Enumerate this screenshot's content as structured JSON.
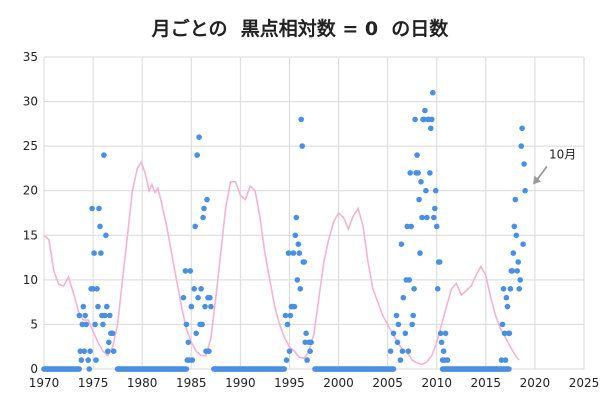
{
  "chart_data": {
    "type": "scatter",
    "title": "月ごとの  黒点相対数 = 0  の日数",
    "xlabel": "",
    "ylabel": "",
    "xlim": [
      1970,
      2025
    ],
    "ylim": [
      0,
      35
    ],
    "x_ticks": [
      1970,
      1975,
      1980,
      1985,
      1990,
      1995,
      2000,
      2005,
      2010,
      2015,
      2020,
      2025
    ],
    "y_ticks": [
      0,
      5,
      10,
      15,
      20,
      25,
      30,
      35
    ],
    "grid": true,
    "legend": "none",
    "annotation": {
      "text": "10月",
      "points_to": {
        "x": 2019.8,
        "y": 20.7
      }
    },
    "series": [
      {
        "kind": "points",
        "color": "#4a90e2",
        "zero_day_segments": [
          [
            1970.0,
            1973.6
          ],
          [
            1977.5,
            1984.5
          ],
          [
            1987.3,
            1994.5
          ],
          [
            1997.6,
            2005.6
          ],
          [
            2010.6,
            2017.4
          ]
        ],
        "points": [
          [
            1973.6,
            6
          ],
          [
            1973.7,
            2
          ],
          [
            1973.8,
            1
          ],
          [
            1973.9,
            5
          ],
          [
            1974.0,
            7
          ],
          [
            1974.1,
            2
          ],
          [
            1974.2,
            6
          ],
          [
            1974.3,
            5
          ],
          [
            1974.5,
            1
          ],
          [
            1974.6,
            0
          ],
          [
            1974.7,
            2
          ],
          [
            1974.8,
            9
          ],
          [
            1974.9,
            18
          ],
          [
            1975.0,
            9
          ],
          [
            1975.1,
            13
          ],
          [
            1975.2,
            5
          ],
          [
            1975.3,
            1
          ],
          [
            1975.4,
            9
          ],
          [
            1975.5,
            7
          ],
          [
            1975.6,
            18
          ],
          [
            1975.7,
            16
          ],
          [
            1975.8,
            13
          ],
          [
            1975.9,
            6
          ],
          [
            1976.0,
            5
          ],
          [
            1976.1,
            24
          ],
          [
            1976.2,
            6
          ],
          [
            1976.3,
            15
          ],
          [
            1976.4,
            7
          ],
          [
            1976.5,
            2
          ],
          [
            1976.6,
            3
          ],
          [
            1976.7,
            6
          ],
          [
            1976.8,
            4
          ],
          [
            1976.9,
            4
          ],
          [
            1977.0,
            4
          ],
          [
            1977.1,
            2
          ],
          [
            1984.2,
            8
          ],
          [
            1984.4,
            11
          ],
          [
            1984.5,
            5
          ],
          [
            1984.6,
            1
          ],
          [
            1984.7,
            3
          ],
          [
            1984.8,
            1
          ],
          [
            1984.9,
            11
          ],
          [
            1985.0,
            7
          ],
          [
            1985.1,
            1
          ],
          [
            1985.3,
            9
          ],
          [
            1985.4,
            16
          ],
          [
            1985.5,
            4
          ],
          [
            1985.6,
            24
          ],
          [
            1985.7,
            8
          ],
          [
            1985.8,
            26
          ],
          [
            1985.9,
            5
          ],
          [
            1986.0,
            9
          ],
          [
            1986.1,
            5
          ],
          [
            1986.2,
            17
          ],
          [
            1986.3,
            18
          ],
          [
            1986.4,
            7
          ],
          [
            1986.5,
            2
          ],
          [
            1986.6,
            19
          ],
          [
            1986.7,
            8
          ],
          [
            1986.8,
            2
          ],
          [
            1986.9,
            8
          ],
          [
            1987.0,
            7
          ],
          [
            1994.6,
            6
          ],
          [
            1994.7,
            1
          ],
          [
            1994.8,
            5
          ],
          [
            1994.9,
            13
          ],
          [
            1995.0,
            2
          ],
          [
            1995.1,
            6
          ],
          [
            1995.2,
            7
          ],
          [
            1995.3,
            7
          ],
          [
            1995.4,
            13
          ],
          [
            1995.5,
            7
          ],
          [
            1995.6,
            15
          ],
          [
            1995.7,
            17
          ],
          [
            1995.8,
            10
          ],
          [
            1995.9,
            14
          ],
          [
            1996.0,
            13
          ],
          [
            1996.1,
            9
          ],
          [
            1996.2,
            28
          ],
          [
            1996.3,
            25
          ],
          [
            1996.4,
            12
          ],
          [
            1996.5,
            12
          ],
          [
            1996.6,
            3
          ],
          [
            1996.7,
            4
          ],
          [
            1996.8,
            1
          ],
          [
            1997.0,
            3
          ],
          [
            1997.1,
            2
          ],
          [
            1997.2,
            3
          ],
          [
            2005.3,
            2
          ],
          [
            2005.6,
            4
          ],
          [
            2005.9,
            6
          ],
          [
            2006.0,
            3
          ],
          [
            2006.1,
            5
          ],
          [
            2006.3,
            1
          ],
          [
            2006.4,
            14
          ],
          [
            2006.5,
            2
          ],
          [
            2006.6,
            8
          ],
          [
            2006.8,
            4
          ],
          [
            2006.9,
            10
          ],
          [
            2007.0,
            16
          ],
          [
            2007.1,
            2
          ],
          [
            2007.2,
            10
          ],
          [
            2007.3,
            22
          ],
          [
            2007.4,
            16
          ],
          [
            2007.5,
            5
          ],
          [
            2007.6,
            6
          ],
          [
            2007.7,
            9
          ],
          [
            2007.8,
            28
          ],
          [
            2007.9,
            22
          ],
          [
            2008.0,
            24
          ],
          [
            2008.1,
            22
          ],
          [
            2008.2,
            19
          ],
          [
            2008.3,
            13
          ],
          [
            2008.4,
            21
          ],
          [
            2008.5,
            17
          ],
          [
            2008.6,
            28
          ],
          [
            2008.7,
            28
          ],
          [
            2008.8,
            29
          ],
          [
            2008.9,
            20
          ],
          [
            2009.0,
            17
          ],
          [
            2009.1,
            28
          ],
          [
            2009.2,
            28
          ],
          [
            2009.3,
            22
          ],
          [
            2009.4,
            27
          ],
          [
            2009.5,
            28
          ],
          [
            2009.6,
            31
          ],
          [
            2009.7,
            17
          ],
          [
            2009.8,
            18
          ],
          [
            2009.9,
            20
          ],
          [
            2010.0,
            16
          ],
          [
            2010.1,
            9
          ],
          [
            2010.2,
            12
          ],
          [
            2010.3,
            12
          ],
          [
            2010.4,
            4
          ],
          [
            2010.5,
            3
          ],
          [
            2010.6,
            1
          ],
          [
            2010.7,
            2
          ],
          [
            2010.8,
            1
          ],
          [
            2010.9,
            4
          ],
          [
            2011.1,
            1
          ],
          [
            2016.6,
            1
          ],
          [
            2016.7,
            5
          ],
          [
            2016.8,
            9
          ],
          [
            2016.9,
            4
          ],
          [
            2017.0,
            1
          ],
          [
            2017.1,
            8
          ],
          [
            2017.2,
            7
          ],
          [
            2017.3,
            4
          ],
          [
            2017.4,
            4
          ],
          [
            2017.5,
            9
          ],
          [
            2017.6,
            11
          ],
          [
            2017.7,
            11
          ],
          [
            2017.8,
            13
          ],
          [
            2017.9,
            16
          ],
          [
            2018.0,
            19
          ],
          [
            2018.1,
            15
          ],
          [
            2018.2,
            11
          ],
          [
            2018.3,
            12
          ],
          [
            2018.4,
            9
          ],
          [
            2018.5,
            10
          ],
          [
            2018.6,
            25
          ],
          [
            2018.7,
            27
          ],
          [
            2018.8,
            14
          ],
          [
            2018.9,
            23
          ],
          [
            2019.0,
            20
          ]
        ]
      },
      {
        "kind": "line",
        "color": "#f4b3d4",
        "points": [
          [
            1970.0,
            15
          ],
          [
            1970.5,
            14.5
          ],
          [
            1971.0,
            11
          ],
          [
            1971.5,
            9.5
          ],
          [
            1972.0,
            9.3
          ],
          [
            1972.5,
            10.3
          ],
          [
            1973.0,
            8.5
          ],
          [
            1973.5,
            6.5
          ],
          [
            1974.0,
            5.5
          ],
          [
            1974.5,
            5.5
          ],
          [
            1975.0,
            4.2
          ],
          [
            1975.5,
            3
          ],
          [
            1976.0,
            2
          ],
          [
            1976.5,
            1.5
          ],
          [
            1977.0,
            2.5
          ],
          [
            1977.5,
            5
          ],
          [
            1978.0,
            10
          ],
          [
            1978.5,
            15
          ],
          [
            1979.0,
            20
          ],
          [
            1979.5,
            22.5
          ],
          [
            1979.9,
            23.2
          ],
          [
            1980.3,
            22
          ],
          [
            1980.7,
            20
          ],
          [
            1981.0,
            20.7
          ],
          [
            1981.3,
            19.8
          ],
          [
            1981.6,
            20.3
          ],
          [
            1982.0,
            18.5
          ],
          [
            1982.5,
            16
          ],
          [
            1983.0,
            13
          ],
          [
            1983.5,
            10
          ],
          [
            1984.0,
            7
          ],
          [
            1984.5,
            4.5
          ],
          [
            1985.0,
            3
          ],
          [
            1985.5,
            2
          ],
          [
            1986.0,
            1.5
          ],
          [
            1986.5,
            1.5
          ],
          [
            1987.0,
            3.5
          ],
          [
            1987.5,
            8
          ],
          [
            1988.0,
            13
          ],
          [
            1988.5,
            18
          ],
          [
            1989.0,
            21
          ],
          [
            1989.5,
            21
          ],
          [
            1990.0,
            19.5
          ],
          [
            1990.5,
            19
          ],
          [
            1991.0,
            20.5
          ],
          [
            1991.5,
            20
          ],
          [
            1992.0,
            17
          ],
          [
            1992.5,
            13
          ],
          [
            1993.0,
            10
          ],
          [
            1993.5,
            7
          ],
          [
            1994.0,
            5
          ],
          [
            1994.5,
            3.5
          ],
          [
            1995.0,
            2.5
          ],
          [
            1995.5,
            2
          ],
          [
            1996.0,
            1.3
          ],
          [
            1996.5,
            1.2
          ],
          [
            1997.0,
            2
          ],
          [
            1997.5,
            4
          ],
          [
            1998.0,
            8
          ],
          [
            1998.5,
            12
          ],
          [
            1999.0,
            14.5
          ],
          [
            1999.5,
            16.5
          ],
          [
            2000.0,
            17.5
          ],
          [
            2000.5,
            17
          ],
          [
            2001.0,
            15.7
          ],
          [
            2001.5,
            17.2
          ],
          [
            2002.0,
            18
          ],
          [
            2002.5,
            16
          ],
          [
            2003.0,
            12
          ],
          [
            2003.5,
            9
          ],
          [
            2004.0,
            7.5
          ],
          [
            2004.5,
            6
          ],
          [
            2005.0,
            5
          ],
          [
            2005.5,
            4
          ],
          [
            2006.0,
            3
          ],
          [
            2006.5,
            2.2
          ],
          [
            2007.0,
            1.8
          ],
          [
            2007.5,
            1
          ],
          [
            2008.0,
            0.7
          ],
          [
            2008.5,
            0.5
          ],
          [
            2009.0,
            0.8
          ],
          [
            2009.5,
            1.5
          ],
          [
            2010.0,
            3
          ],
          [
            2010.5,
            5
          ],
          [
            2011.0,
            7
          ],
          [
            2011.5,
            9
          ],
          [
            2012.0,
            9.6
          ],
          [
            2012.5,
            8.3
          ],
          [
            2013.0,
            8.8
          ],
          [
            2013.5,
            9.3
          ],
          [
            2014.0,
            10.5
          ],
          [
            2014.5,
            11.5
          ],
          [
            2015.0,
            10.5
          ],
          [
            2015.5,
            8
          ],
          [
            2016.0,
            6
          ],
          [
            2016.5,
            4.5
          ],
          [
            2017.0,
            3.5
          ],
          [
            2017.5,
            2.5
          ],
          [
            2018.0,
            1.5
          ],
          [
            2018.4,
            1.0
          ]
        ]
      }
    ]
  }
}
